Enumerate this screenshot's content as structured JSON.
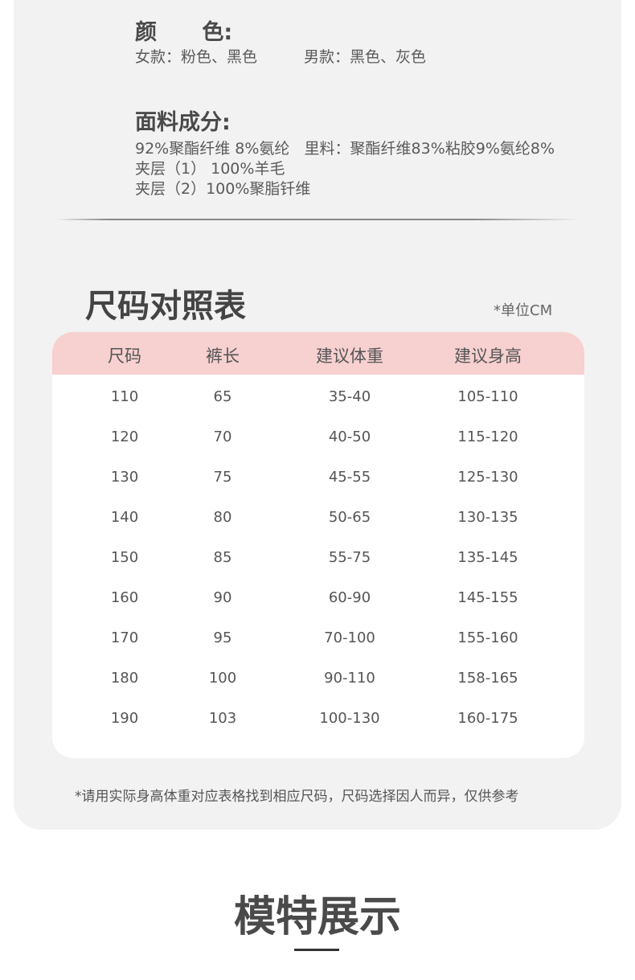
{
  "color_section": {
    "heading": "颜      色:",
    "women": "女款：粉色、黑色",
    "men": "男款：黑色、灰色"
  },
  "fabric_section": {
    "heading": "面料成分:",
    "lines": [
      "92%聚酯纤维 8%氨纶   里料：聚酯纤维83%粘胶9%氨纶8%",
      "夹层（1） 100%羊毛",
      "夹层（2）100%聚脂钎维"
    ]
  },
  "size_chart": {
    "title": "尺码对照表",
    "unit": "*单位CM",
    "header_color": "#f7d0d0",
    "columns": [
      "尺码",
      "裤长",
      "建议体重",
      "建议身高"
    ],
    "rows": [
      [
        "110",
        "65",
        "35-40",
        "105-110"
      ],
      [
        "120",
        "70",
        "40-50",
        "115-120"
      ],
      [
        "130",
        "75",
        "45-55",
        "125-130"
      ],
      [
        "140",
        "80",
        "50-65",
        "130-135"
      ],
      [
        "150",
        "85",
        "55-75",
        "135-145"
      ],
      [
        "160",
        "90",
        "60-90",
        "145-155"
      ],
      [
        "170",
        "95",
        "70-100",
        "155-160"
      ],
      [
        "180",
        "100",
        "90-110",
        "158-165"
      ],
      [
        "190",
        "103",
        "100-130",
        "160-175"
      ]
    ],
    "note": "*请用实际身高体重对应表格找到相应尺码，尺码选择因人而异，仅供参考"
  },
  "model_section": {
    "title": "模特展示"
  }
}
